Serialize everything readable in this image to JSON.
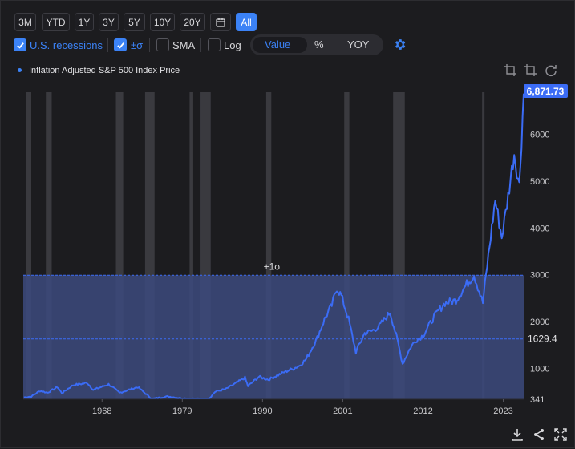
{
  "range_buttons": [
    "3M",
    "YTD",
    "1Y",
    "3Y",
    "5Y",
    "10Y",
    "20Y",
    "All"
  ],
  "range_selected": "All",
  "options": {
    "recessions": {
      "label": "U.S. recessions",
      "checked": true
    },
    "sigma": {
      "label": "±σ",
      "checked": true
    },
    "sma": {
      "label": "SMA",
      "checked": false
    },
    "log": {
      "label": "Log",
      "checked": false
    }
  },
  "view_modes": [
    "Value",
    "%",
    "YOY"
  ],
  "view_selected": "Value",
  "colors": {
    "accent": "#3b82f6",
    "line": "#3b6cf6",
    "band": "#3c4a7e",
    "recession": "#3a3a3f"
  },
  "chart_data": {
    "type": "line",
    "series": [
      {
        "name": "Inflation Adjusted S&P 500 Index Price",
        "color": "#3b6cf6"
      }
    ],
    "x_ticks": [
      "1968",
      "1979",
      "1990",
      "2001",
      "2012",
      "2023"
    ],
    "y_ticks": [
      1000,
      2000,
      3000,
      4000,
      5000,
      6000
    ],
    "y_range": [
      340,
      6900
    ],
    "x_range": [
      1957.2,
      2025.8
    ],
    "last_value_label": "6,871.73",
    "mean_label": "1629.4",
    "min_label": "341",
    "band_label": "+1σ",
    "band_upper": 2990,
    "mean_value": 1629.4,
    "recessions": [
      [
        1957.6,
        1958.3
      ],
      [
        1960.3,
        1961.1
      ],
      [
        1969.9,
        1970.9
      ],
      [
        1973.9,
        1975.2
      ],
      [
        1980.0,
        1980.5
      ],
      [
        1981.5,
        1982.9
      ],
      [
        1990.5,
        1991.2
      ],
      [
        2001.2,
        2001.9
      ],
      [
        2007.9,
        2009.5
      ],
      [
        2020.1,
        2020.4
      ]
    ],
    "points": [
      [
        1957.3,
        380
      ],
      [
        1958.3,
        400
      ],
      [
        1959.5,
        520
      ],
      [
        1960.5,
        480
      ],
      [
        1961.9,
        600
      ],
      [
        1962.5,
        470
      ],
      [
        1964,
        640
      ],
      [
        1966,
        690
      ],
      [
        1966.8,
        540
      ],
      [
        1968.9,
        660
      ],
      [
        1970.4,
        480
      ],
      [
        1972.9,
        600
      ],
      [
        1974.8,
        350
      ],
      [
        1977,
        400
      ],
      [
        1979,
        360
      ],
      [
        1982.6,
        341
      ],
      [
        1983.5,
        500
      ],
      [
        1985,
        560
      ],
      [
        1987.6,
        800
      ],
      [
        1988,
        620
      ],
      [
        1989.5,
        820
      ],
      [
        1990.8,
        760
      ],
      [
        1993,
        920
      ],
      [
        1995,
        1050
      ],
      [
        1996,
        1200
      ],
      [
        1997.5,
        1650
      ],
      [
        1998.5,
        2050
      ],
      [
        1999.5,
        2350
      ],
      [
        2000.2,
        2720
      ],
      [
        2000.8,
        2550
      ],
      [
        2001.8,
        2050
      ],
      [
        2002.8,
        1350
      ],
      [
        2004,
        1750
      ],
      [
        2005,
        1800
      ],
      [
        2006,
        1900
      ],
      [
        2007.5,
        2200
      ],
      [
        2008.5,
        1600
      ],
      [
        2009.2,
        1100
      ],
      [
        2010.3,
        1450
      ],
      [
        2011,
        1600
      ],
      [
        2012,
        1700
      ],
      [
        2013.5,
        2100
      ],
      [
        2015,
        2400
      ],
      [
        2016.5,
        2450
      ],
      [
        2018,
        2800
      ],
      [
        2019,
        3000
      ],
      [
        2020.2,
        2400
      ],
      [
        2020.8,
        3200
      ],
      [
        2021.9,
        4600
      ],
      [
        2022.8,
        3800
      ],
      [
        2023.5,
        4500
      ],
      [
        2024.5,
        5600
      ],
      [
        2025.2,
        4900
      ],
      [
        2025.8,
        6871.73
      ]
    ]
  }
}
